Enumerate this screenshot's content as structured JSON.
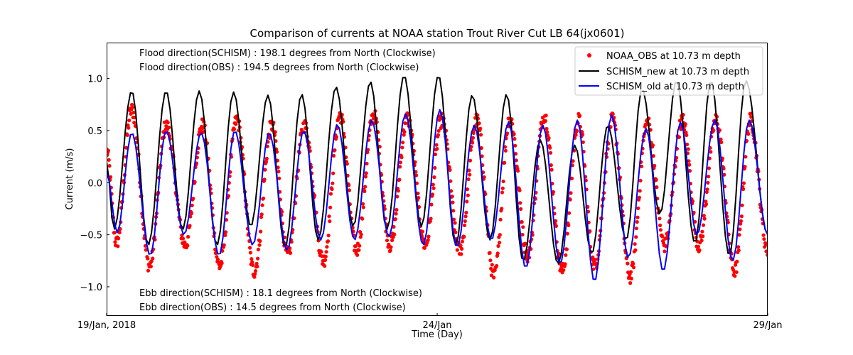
{
  "chart_data": {
    "type": "line",
    "title": "Comparison of currents at NOAA station Trout River Cut LB 64(jx0601)",
    "xlabel": "Time (Day)",
    "ylabel": "Current (m/s)",
    "xlim": [
      0,
      10
    ],
    "ylim": [
      -1.28,
      1.345
    ],
    "x_units": "days since 19/Jan, 2018",
    "x_ticks": [
      {
        "value": 0,
        "label": "19/Jan, 2018"
      },
      {
        "value": 5,
        "label": "24/Jan"
      },
      {
        "value": 10,
        "label": "29/Jan"
      }
    ],
    "y_ticks": [
      {
        "value": 1.0,
        "label": "1.0"
      },
      {
        "value": 0.5,
        "label": "0.5"
      },
      {
        "value": 0.0,
        "label": "0.0"
      },
      {
        "value": -0.5,
        "label": "−0.5"
      },
      {
        "value": -1.0,
        "label": "−1.0"
      }
    ],
    "grid": false,
    "legend_position": "top-right",
    "annotations": {
      "flood_schism": "Flood direction(SCHISM) : 198.1 degrees from North (Clockwise)",
      "flood_obs": "Flood direction(OBS) : 194.5 degrees from North (Clockwise)",
      "ebb_schism": "Ebb direction(SCHISM) : 18.1 degrees from North (Clockwise)",
      "ebb_obs": "Ebb direction(OBS) : 14.5 degrees from North (Clockwise)"
    },
    "series": [
      {
        "name": "NOAA_OBS at 10.73 m depth",
        "style": "scatter",
        "color": "#ff0000",
        "extrema": {
          "x": [
            0.0,
            0.15,
            0.38,
            0.65,
            0.9,
            1.19,
            1.45,
            1.71,
            1.97,
            2.23,
            2.5,
            2.74,
            2.99,
            3.28,
            3.53,
            3.78,
            4.04,
            4.29,
            4.55,
            4.82,
            5.07,
            5.34,
            5.6,
            5.86,
            6.1,
            6.37,
            6.62,
            6.89,
            7.14,
            7.38,
            7.65,
            7.92,
            8.18,
            8.44,
            8.71,
            8.96,
            9.22,
            9.5,
            9.74,
            10.0
          ],
          "y": [
            0.3,
            -0.58,
            0.7,
            -0.8,
            0.55,
            -0.6,
            0.55,
            -0.8,
            0.6,
            -0.85,
            0.55,
            -0.7,
            0.55,
            -0.75,
            0.65,
            -0.65,
            0.65,
            -0.6,
            0.62,
            -0.6,
            0.6,
            -0.65,
            0.6,
            -0.9,
            0.62,
            -0.7,
            0.65,
            -0.85,
            0.6,
            -0.8,
            0.6,
            -0.9,
            0.58,
            -0.6,
            0.6,
            -0.6,
            0.6,
            -0.85,
            0.6,
            -0.65
          ]
        }
      },
      {
        "name": "SCHISM_new at 10.73 m depth",
        "style": "line",
        "color": "#000000",
        "extrema": {
          "x": [
            0.0,
            0.11,
            0.38,
            0.63,
            0.9,
            1.15,
            1.4,
            1.67,
            1.92,
            2.18,
            2.44,
            2.7,
            2.95,
            3.2,
            3.47,
            3.73,
            3.99,
            4.24,
            4.5,
            4.76,
            5.02,
            5.28,
            5.53,
            5.8,
            6.05,
            6.3,
            6.56,
            6.83,
            7.08,
            7.34,
            7.58,
            7.86,
            8.1,
            8.37,
            8.62,
            8.9,
            9.14,
            9.42,
            9.67,
            10.0
          ],
          "y": [
            0.2,
            -0.45,
            0.88,
            -0.6,
            0.88,
            -0.45,
            0.88,
            -0.6,
            0.87,
            -0.42,
            0.84,
            -0.62,
            0.85,
            -0.55,
            0.92,
            -0.42,
            0.97,
            -0.45,
            1.03,
            -0.42,
            1.03,
            -0.6,
            0.84,
            -0.55,
            0.85,
            -0.75,
            0.41,
            -0.78,
            0.36,
            -0.68,
            0.55,
            -0.55,
            0.9,
            -0.3,
            0.98,
            -0.58,
            0.98,
            -0.7,
            0.98,
            -0.5
          ]
        }
      },
      {
        "name": "SCHISM_old at 10.73 m depth",
        "style": "line",
        "color": "#0000ff",
        "extrema": {
          "x": [
            0.0,
            0.16,
            0.38,
            0.66,
            0.9,
            1.17,
            1.43,
            1.7,
            1.94,
            2.21,
            2.46,
            2.73,
            2.98,
            3.24,
            3.49,
            3.75,
            4.01,
            4.27,
            4.52,
            4.79,
            5.04,
            5.3,
            5.56,
            5.82,
            6.08,
            6.34,
            6.6,
            6.86,
            7.12,
            7.38,
            7.64,
            7.89,
            8.16,
            8.42,
            8.68,
            8.93,
            9.2,
            9.47,
            9.72,
            10.0
          ],
          "y": [
            0.1,
            -0.48,
            0.48,
            -0.7,
            0.5,
            -0.5,
            0.48,
            -0.7,
            0.5,
            -0.6,
            0.48,
            -0.65,
            0.5,
            -0.55,
            0.56,
            -0.55,
            0.6,
            -0.52,
            0.66,
            -0.6,
            0.7,
            -0.62,
            0.55,
            -0.55,
            0.58,
            -0.82,
            0.55,
            -0.78,
            0.6,
            -0.95,
            0.65,
            -0.72,
            0.52,
            -0.85,
            0.58,
            -0.5,
            0.6,
            -0.75,
            0.6,
            -0.5
          ]
        }
      }
    ]
  }
}
